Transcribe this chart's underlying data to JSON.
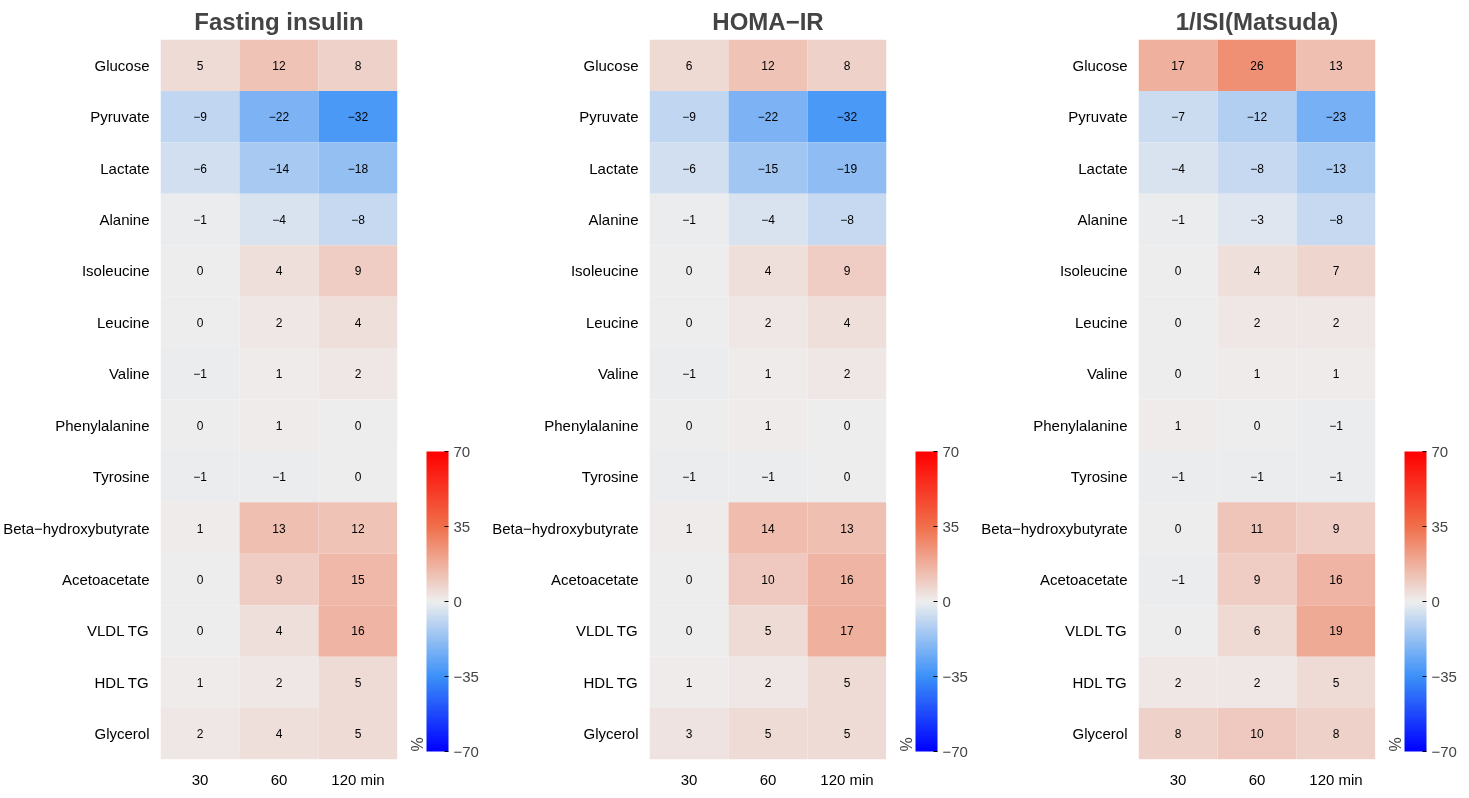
{
  "chart_data": [
    {
      "type": "heatmap",
      "title": "Fasting insulin",
      "categories": [
        "30",
        "60",
        "120 min"
      ],
      "y_categories": [
        "Glucose",
        "Pyruvate",
        "Lactate",
        "Alanine",
        "Isoleucine",
        "Leucine",
        "Valine",
        "Phenylalanine",
        "Tyrosine",
        "Beta−hydroxybutyrate",
        "Acetoacetate",
        "VLDL TG",
        "HDL TG",
        "Glycerol"
      ],
      "cells": [
        [
          5,
          12,
          8
        ],
        [
          -9,
          -22,
          -32
        ],
        [
          -6,
          -14,
          -18
        ],
        [
          -1,
          -4,
          -8
        ],
        [
          0,
          4,
          9
        ],
        [
          0,
          2,
          4
        ],
        [
          -1,
          1,
          2
        ],
        [
          0,
          1,
          0
        ],
        [
          -1,
          -1,
          0
        ],
        [
          1,
          13,
          12
        ],
        [
          0,
          9,
          15
        ],
        [
          0,
          4,
          16
        ],
        [
          1,
          2,
          5
        ],
        [
          2,
          4,
          5
        ]
      ],
      "clim": [
        -70,
        70
      ],
      "cticks": [
        -70,
        -35,
        0,
        35,
        70
      ],
      "clabel": "%",
      "data_labels": true
    },
    {
      "type": "heatmap",
      "title": "HOMA−IR",
      "categories": [
        "30",
        "60",
        "120 min"
      ],
      "y_categories": [
        "Glucose",
        "Pyruvate",
        "Lactate",
        "Alanine",
        "Isoleucine",
        "Leucine",
        "Valine",
        "Phenylalanine",
        "Tyrosine",
        "Beta−hydroxybutyrate",
        "Acetoacetate",
        "VLDL TG",
        "HDL TG",
        "Glycerol"
      ],
      "cells": [
        [
          6,
          12,
          8
        ],
        [
          -9,
          -22,
          -32
        ],
        [
          -6,
          -15,
          -19
        ],
        [
          -1,
          -4,
          -8
        ],
        [
          0,
          4,
          9
        ],
        [
          0,
          2,
          4
        ],
        [
          -1,
          1,
          2
        ],
        [
          0,
          1,
          0
        ],
        [
          -1,
          -1,
          0
        ],
        [
          1,
          14,
          13
        ],
        [
          0,
          10,
          16
        ],
        [
          0,
          5,
          17
        ],
        [
          1,
          2,
          5
        ],
        [
          3,
          5,
          5
        ]
      ],
      "clim": [
        -70,
        70
      ],
      "cticks": [
        -70,
        -35,
        0,
        35,
        70
      ],
      "clabel": "%",
      "data_labels": true
    },
    {
      "type": "heatmap",
      "title": "1/ISI(Matsuda)",
      "categories": [
        "30",
        "60",
        "120 min"
      ],
      "y_categories": [
        "Glucose",
        "Pyruvate",
        "Lactate",
        "Alanine",
        "Isoleucine",
        "Leucine",
        "Valine",
        "Phenylalanine",
        "Tyrosine",
        "Beta−hydroxybutyrate",
        "Acetoacetate",
        "VLDL TG",
        "HDL TG",
        "Glycerol"
      ],
      "cells": [
        [
          17,
          26,
          13
        ],
        [
          -7,
          -12,
          -23
        ],
        [
          -4,
          -8,
          -13
        ],
        [
          -1,
          -3,
          -8
        ],
        [
          0,
          4,
          7
        ],
        [
          0,
          2,
          2
        ],
        [
          0,
          1,
          1
        ],
        [
          1,
          0,
          -1
        ],
        [
          -1,
          -1,
          -1
        ],
        [
          0,
          11,
          9
        ],
        [
          -1,
          9,
          16
        ],
        [
          0,
          6,
          19
        ],
        [
          2,
          2,
          5
        ],
        [
          8,
          10,
          8
        ]
      ],
      "clim": [
        -70,
        70
      ],
      "cticks": [
        -70,
        -35,
        0,
        35,
        70
      ],
      "clabel": "%",
      "data_labels": true
    }
  ]
}
